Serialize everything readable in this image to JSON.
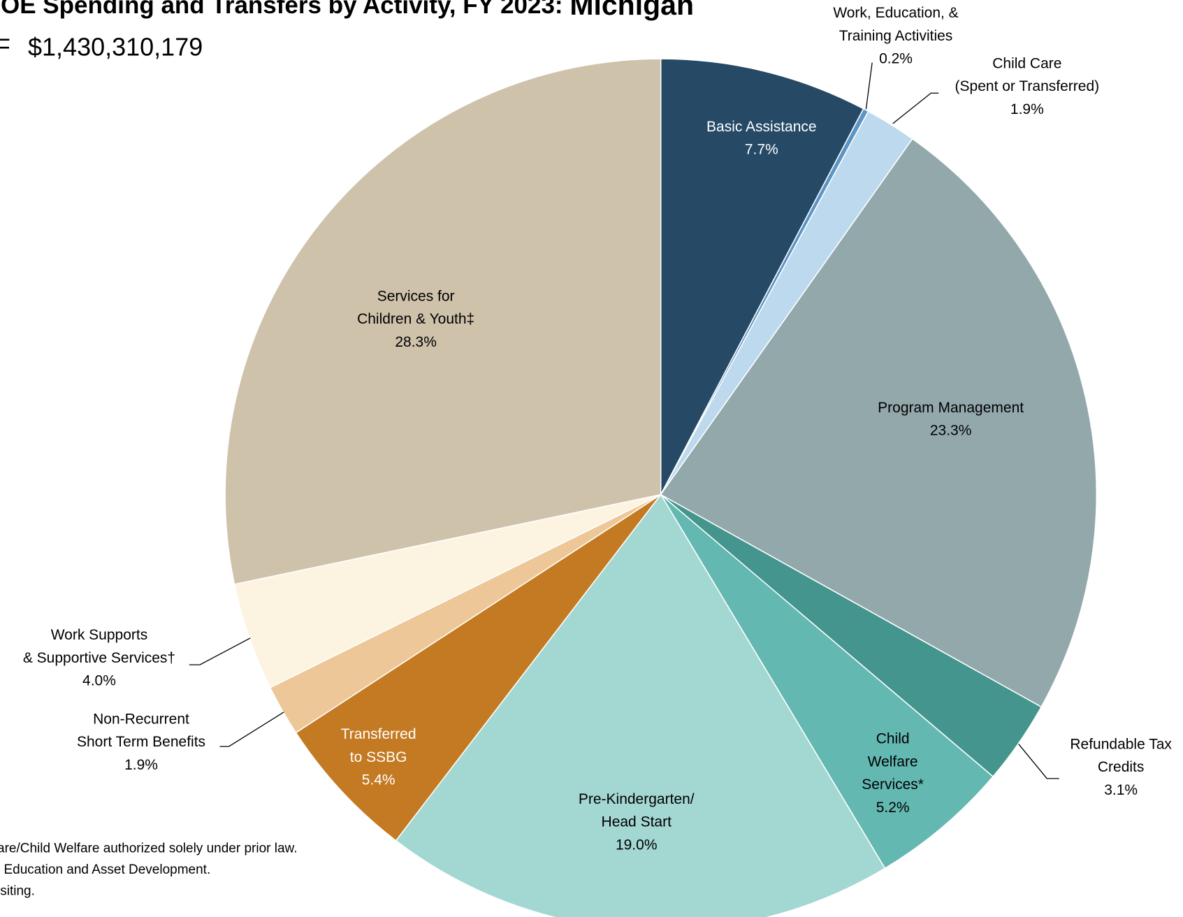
{
  "chart_data": {
    "type": "pie",
    "title": "OE Spending and Transfers by Activity, FY 2023: ",
    "title_state": "Michigan",
    "subtitle_prefix": "F",
    "subtitle": "$1,430,310,179",
    "categories": [
      [
        "Basic Assistance"
      ],
      [
        "Work, Education, &",
        "Training Activities"
      ],
      [
        "Child Care",
        "(Spent or Transferred)"
      ],
      [
        "Program Management"
      ],
      [
        "Refundable Tax",
        "Credits"
      ],
      [
        "Child",
        "Welfare",
        "Services*"
      ],
      [
        "Pre-Kindergarten/",
        "Head Start"
      ],
      [
        "Transferred",
        "to SSBG"
      ],
      [
        "Non-Recurrent",
        "Short Term Benefits"
      ],
      [
        "Work Supports",
        "& Supportive Services†"
      ],
      [
        "Services for",
        "Children & Youth‡"
      ]
    ],
    "values": [
      7.7,
      0.2,
      1.9,
      23.3,
      3.1,
      5.2,
      19.0,
      5.4,
      1.9,
      4.0,
      28.3
    ],
    "value_labels": [
      "7.7%",
      "0.2%",
      "1.9%",
      "23.3%",
      "3.1%",
      "5.2%",
      "19.0%",
      "5.4%",
      "1.9%",
      "4.0%",
      "28.3%"
    ],
    "colors": [
      "#264a66",
      "#5b95c6",
      "#bdd9ee",
      "#93a8ab",
      "#43958d",
      "#63b8b2",
      "#a3d7d2",
      "#c47a22",
      "#edc797",
      "#fdf3e1",
      "#cfc2ab"
    ],
    "footnotes": [
      "are/Child Welfare authorized solely under prior law.",
      "l Education and Asset Development.",
      "isiting."
    ]
  }
}
